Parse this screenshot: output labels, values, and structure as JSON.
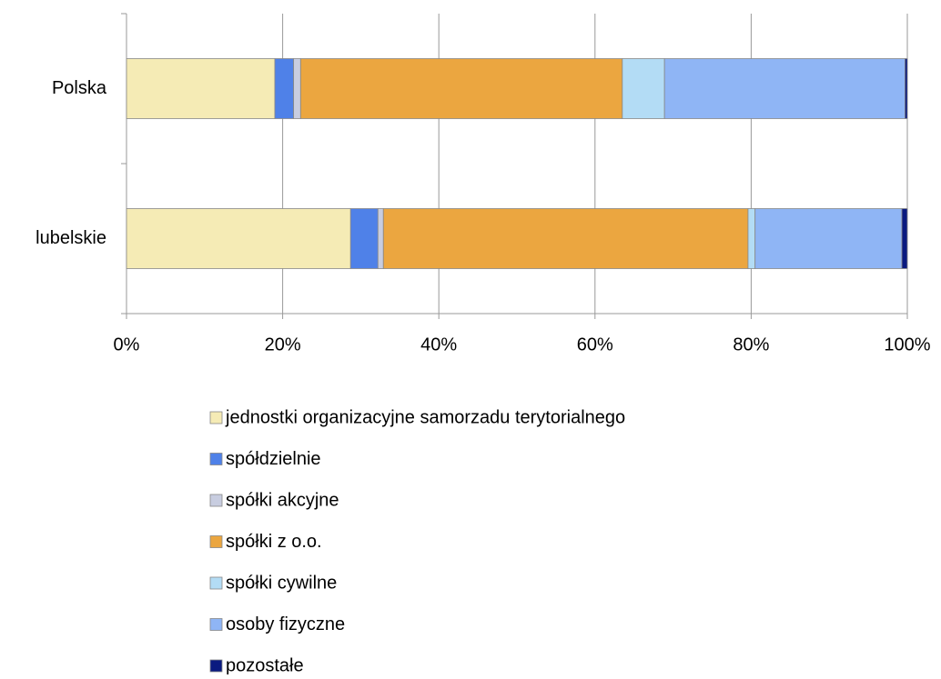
{
  "chart_data": {
    "type": "stacked_barh",
    "categories": [
      "Polska",
      "lubelskie"
    ],
    "series": [
      {
        "name": "jednostki organizacyjne samorzadu terytorialnego",
        "color": "#f5ebb5",
        "values": [
          19.0,
          28.7
        ]
      },
      {
        "name": "spółdzielnie",
        "color": "#4f81e8",
        "values": [
          2.4,
          3.5
        ]
      },
      {
        "name": "spółki akcyjne",
        "color": "#c8cde0",
        "values": [
          0.9,
          0.7
        ]
      },
      {
        "name": "spółki z o.o.",
        "color": "#eba640",
        "values": [
          41.2,
          46.7
        ]
      },
      {
        "name": "spółki cywilne",
        "color": "#b3dcf5",
        "values": [
          5.4,
          0.9
        ]
      },
      {
        "name": "osoby fizyczne",
        "color": "#8fb5f5",
        "values": [
          30.8,
          18.8
        ]
      },
      {
        "name": "pozostałe",
        "color": "#0a1a80",
        "values": [
          0.3,
          0.7
        ]
      }
    ],
    "xlim": [
      0,
      100
    ],
    "xticks": [
      {
        "value": 0,
        "label": "0%"
      },
      {
        "value": 20,
        "label": "20%"
      },
      {
        "value": 40,
        "label": "40%"
      },
      {
        "value": 60,
        "label": "60%"
      },
      {
        "value": 80,
        "label": "80%"
      },
      {
        "value": 100,
        "label": "100%"
      }
    ],
    "grid": true,
    "legend": "bottom"
  }
}
